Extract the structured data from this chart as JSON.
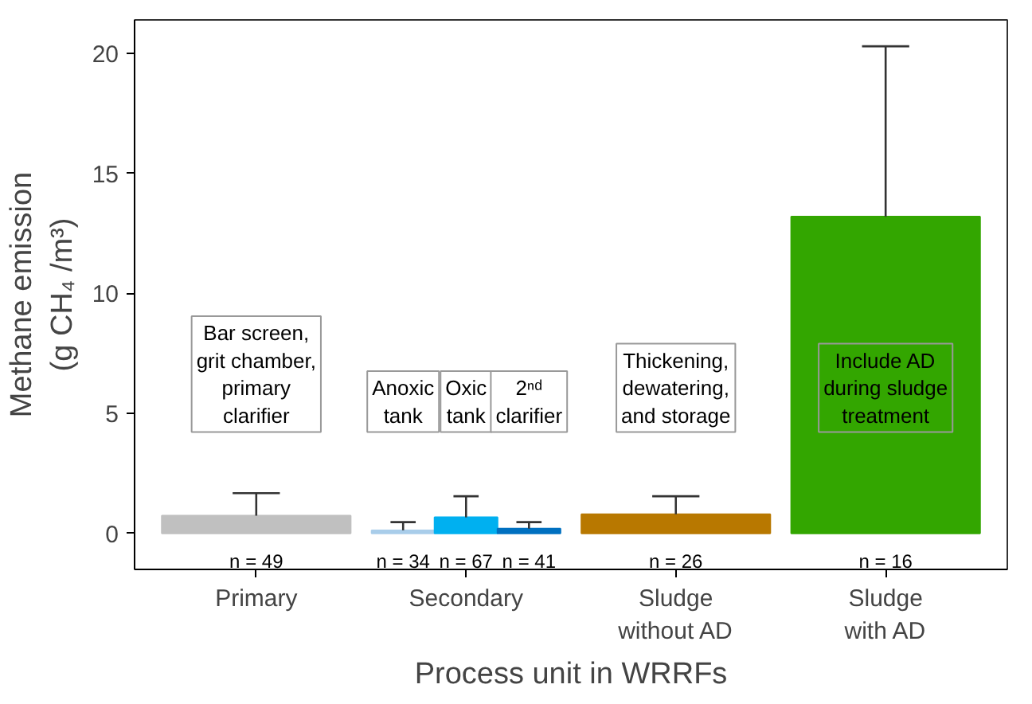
{
  "chart_data": {
    "type": "bar",
    "xlabel": "Process unit in WRRFs",
    "ylabel": "Methane emission\n(g CH₄ /m³)",
    "categories": [
      "Primary",
      null,
      "Secondary",
      null,
      "Sludge\nwithout AD",
      "Sludge\nwith AD"
    ],
    "values": [
      0.74,
      0.13,
      0.67,
      0.2,
      0.8,
      13.2
    ],
    "colors": [
      "#c0c0c0",
      "#a9cdea",
      "#00b0f0",
      "#0070c0",
      "#b87800",
      "#33a600"
    ],
    "errors": [
      [
        0.74,
        1.68
      ],
      [
        0.13,
        0.47
      ],
      [
        0.67,
        1.55
      ],
      [
        0.2,
        0.47
      ],
      [
        0.8,
        1.55
      ],
      [
        13.2,
        20.3
      ]
    ],
    "ylim": [
      -1.5,
      21.4
    ],
    "yticks": [
      0,
      5,
      10,
      15,
      20
    ],
    "grid": false,
    "annotations": [
      "n = 49",
      "n = 34",
      "n = 67",
      "n = 41",
      "n = 26",
      "n = 16",
      "Bar screen,\ngrit chamber,\nprimary\nclarifier",
      "Anoxic\ntank",
      "Oxic\ntank",
      "2ⁿᵈ\nclarifier",
      "Thickening,\ndewatering,\nand storage",
      "Include AD\nduring sludge\ntreatment"
    ]
  }
}
